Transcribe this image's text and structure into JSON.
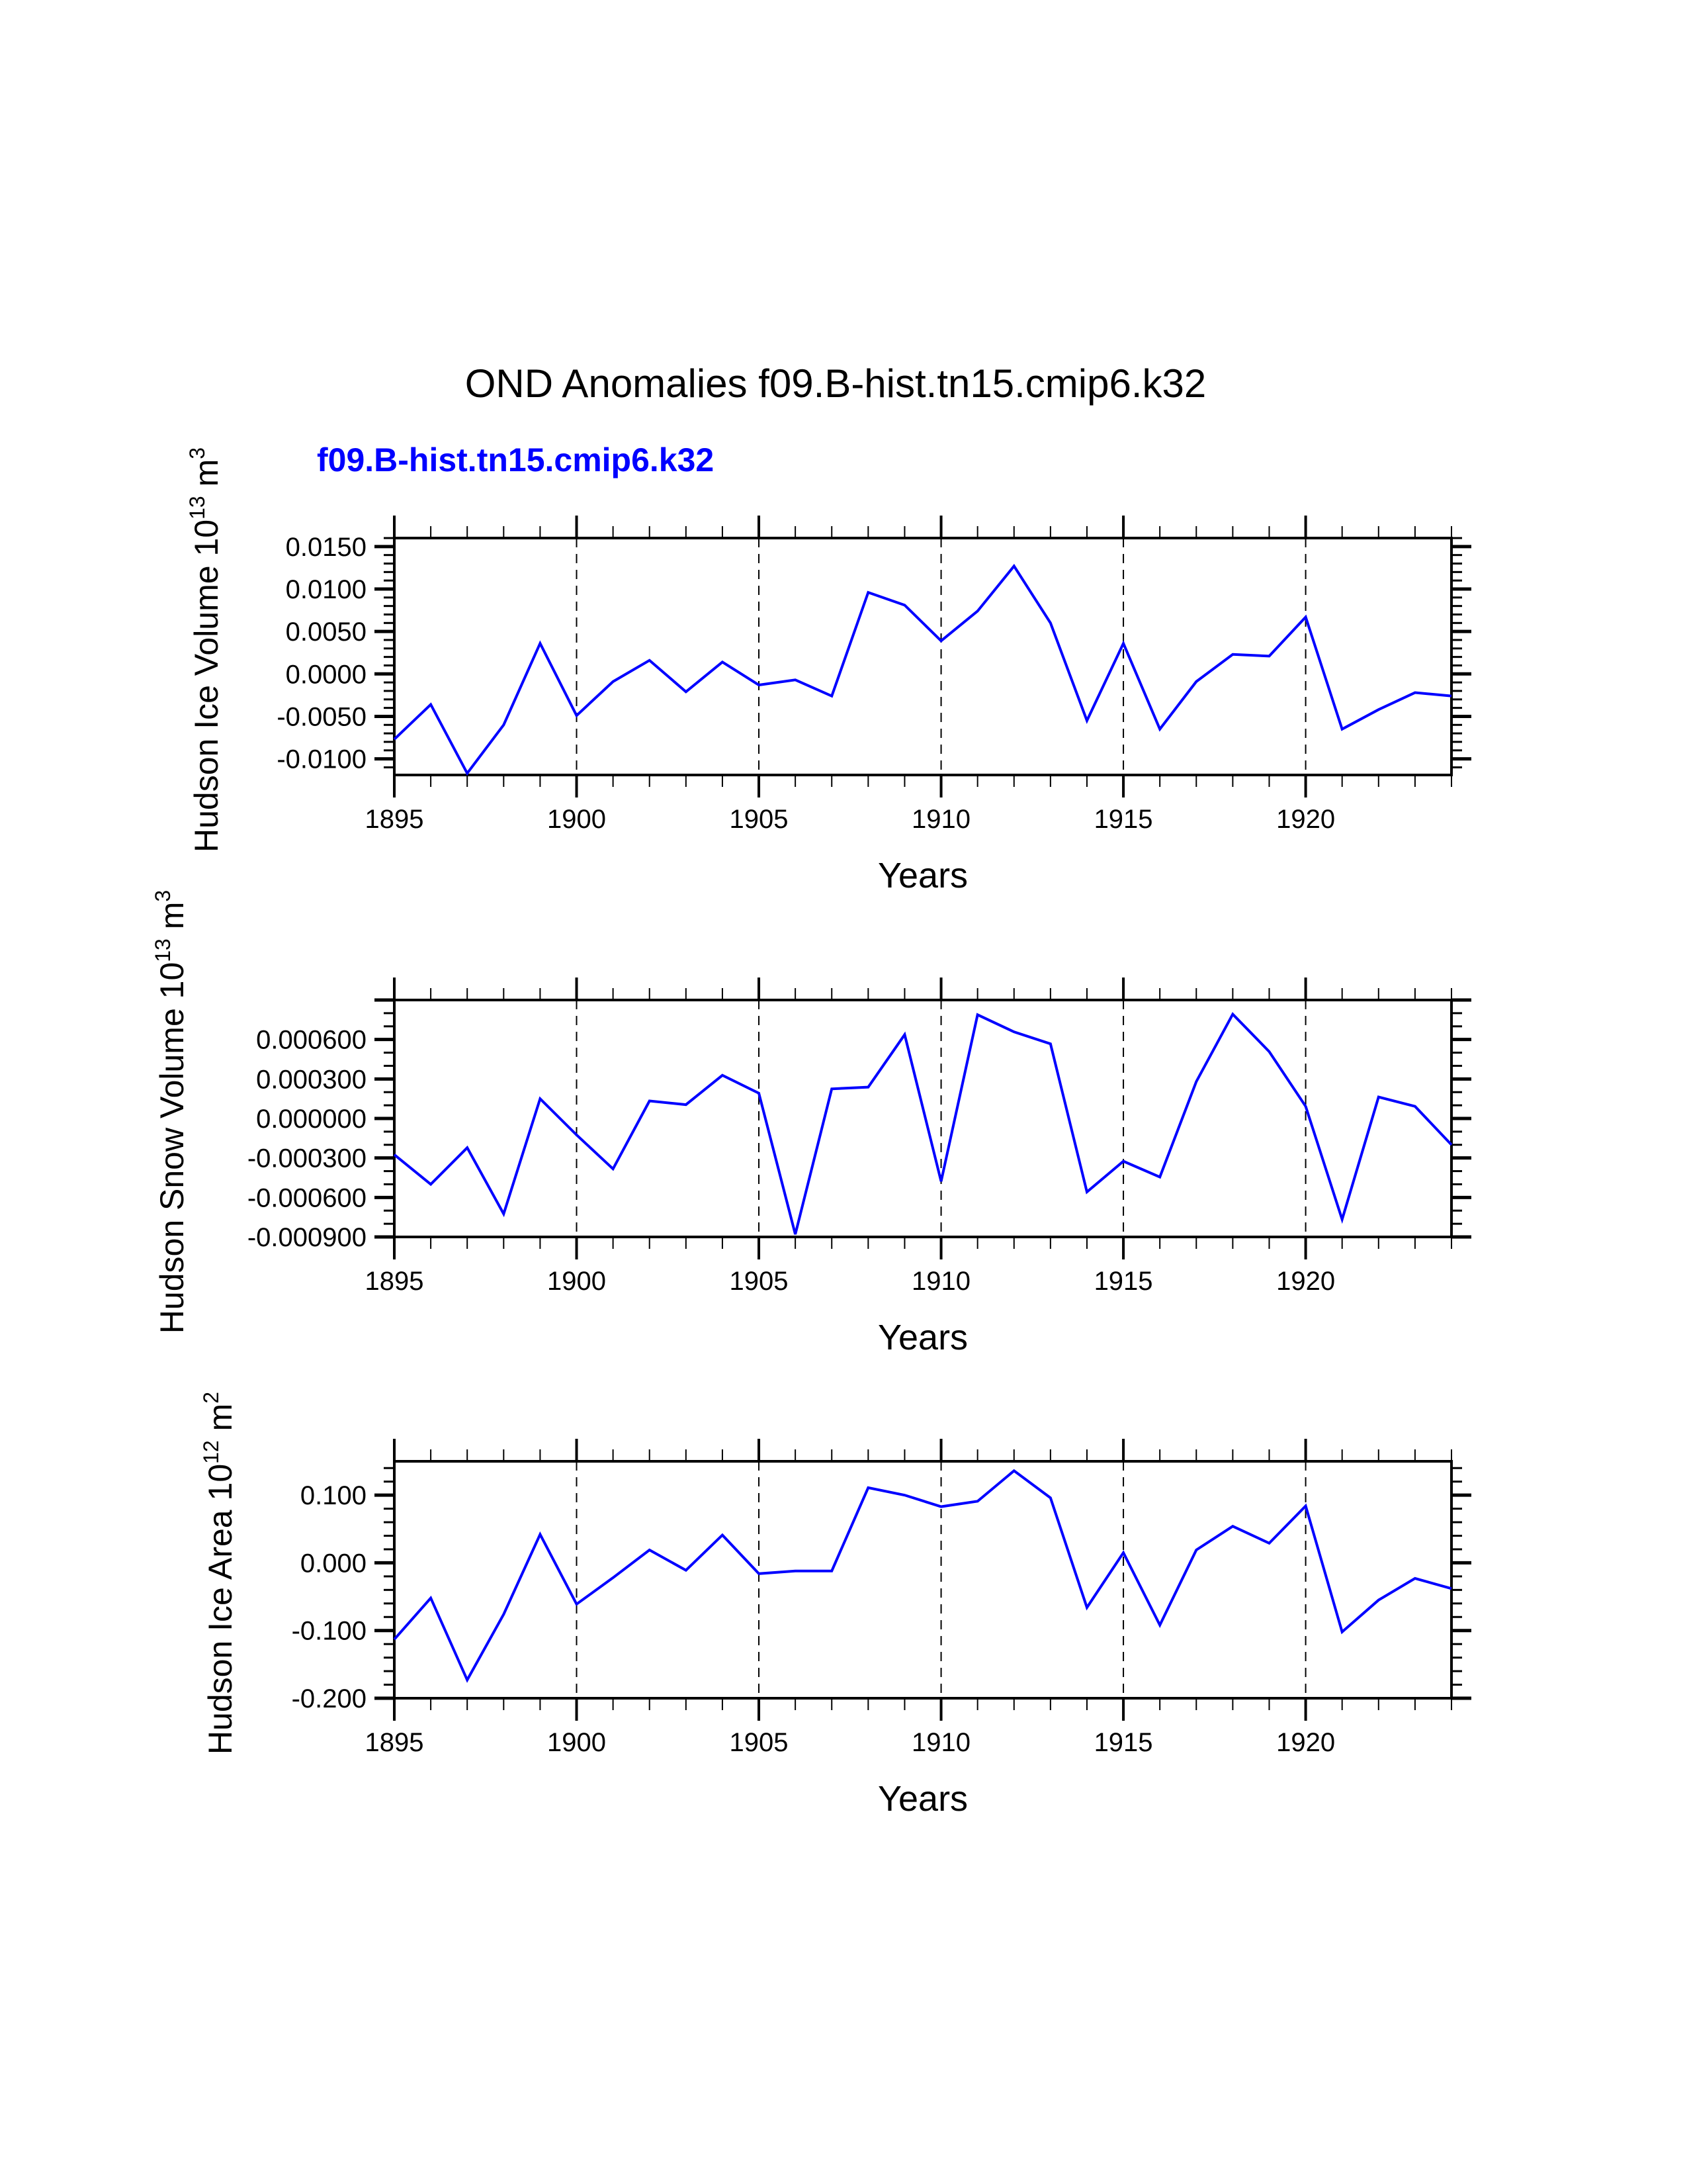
{
  "title": "OND Anomalies f09.B-hist.tn15.cmip6.k32",
  "subtitle": "f09.B-hist.tn15.cmip6.k32",
  "colors": {
    "series": "#0000ff",
    "axis": "#000000",
    "subtitle": "#0000ff"
  },
  "chart_data": [
    {
      "type": "line",
      "ylabel": {
        "text": "Hudson Ice Volume 10",
        "exp": "13",
        "unit": " m",
        "unit_exp": "3"
      },
      "xlabel": "Years",
      "xlim": [
        1895,
        1924
      ],
      "xticks": [
        "1895",
        "1900",
        "1905",
        "1910",
        "1915",
        "1920"
      ],
      "yticks": [
        "0.0150",
        "0.0100",
        "0.0050",
        "0.0000",
        "-0.0050",
        "-0.0100"
      ],
      "ylim": [
        -0.0119,
        0.016
      ],
      "ymajor": 0.005,
      "yminor": 0.001,
      "grid": "dashed vertical at major x ticks",
      "series": [
        {
          "name": "f09.B-hist.tn15.cmip6.k32",
          "x": [
            1895,
            1896,
            1897,
            1898,
            1899,
            1900,
            1901,
            1902,
            1903,
            1904,
            1905,
            1906,
            1907,
            1908,
            1909,
            1910,
            1911,
            1912,
            1913,
            1914,
            1915,
            1916,
            1917,
            1918,
            1919,
            1920,
            1921,
            1922,
            1923,
            1924
          ],
          "values": [
            -0.0077,
            -0.0036,
            -0.0117,
            -0.006,
            0.0036,
            -0.0049,
            -0.0009,
            0.0016,
            -0.0021,
            0.0014,
            -0.0013,
            -0.0007,
            -0.0026,
            0.0096,
            0.0081,
            0.0039,
            0.0074,
            0.0127,
            0.006,
            -0.0055,
            0.0036,
            -0.0065,
            -0.0009,
            0.0023,
            0.0021,
            0.0067,
            -0.0065,
            -0.0042,
            -0.0022,
            -0.0026
          ]
        }
      ]
    },
    {
      "type": "line",
      "ylabel": {
        "text": "Hudson Snow Volume 10",
        "exp": "13",
        "unit": " m",
        "unit_exp": "3"
      },
      "xlabel": "Years",
      "xlim": [
        1895,
        1924
      ],
      "xticks": [
        "1895",
        "1900",
        "1905",
        "1910",
        "1915",
        "1920"
      ],
      "yticks": [
        "0.000600",
        "0.000300",
        "0.000000",
        "-0.000300",
        "-0.000600",
        "-0.000900"
      ],
      "ylim": [
        -0.0009,
        0.0009
      ],
      "ymajor": 0.0003,
      "yminor": 0.0001,
      "grid": "dashed vertical at major x ticks",
      "series": [
        {
          "name": "f09.B-hist.tn15.cmip6.k32",
          "x": [
            1895,
            1896,
            1897,
            1898,
            1899,
            1900,
            1901,
            1902,
            1903,
            1904,
            1905,
            1906,
            1907,
            1908,
            1909,
            1910,
            1911,
            1912,
            1913,
            1914,
            1915,
            1916,
            1917,
            1918,
            1919,
            1920,
            1921,
            1922,
            1923,
            1924
          ],
          "values": [
            -0.000275,
            -0.0005,
            -0.000222,
            -0.000725,
            0.00015,
            -0.000125,
            -0.000383,
            0.000133,
            0.000105,
            0.000328,
            0.000192,
            -0.00088,
            0.000225,
            0.000238,
            0.000637,
            -0.000478,
            0.000788,
            0.000658,
            0.000567,
            -0.000558,
            -0.000325,
            -0.000445,
            0.00028,
            0.000792,
            0.000508,
            9.2e-05,
            -0.000767,
            0.000163,
            9.2e-05,
            -0.0002
          ]
        }
      ]
    },
    {
      "type": "line",
      "ylabel": {
        "text": "Hudson Ice Area 10",
        "exp": "12",
        "unit": " m",
        "unit_exp": "2"
      },
      "xlabel": "Years",
      "xlim": [
        1895,
        1924
      ],
      "xticks": [
        "1895",
        "1900",
        "1905",
        "1910",
        "1915",
        "1920"
      ],
      "yticks": [
        "0.100",
        "0.000",
        "-0.100",
        "-0.200"
      ],
      "ylim": [
        -0.2,
        0.15
      ],
      "ymajor": 0.1,
      "yminor": 0.02,
      "grid": "dashed vertical at major x ticks",
      "series": [
        {
          "name": "f09.B-hist.tn15.cmip6.k32",
          "x": [
            1895,
            1896,
            1897,
            1898,
            1899,
            1900,
            1901,
            1902,
            1903,
            1904,
            1905,
            1906,
            1907,
            1908,
            1909,
            1910,
            1911,
            1912,
            1913,
            1914,
            1915,
            1916,
            1917,
            1918,
            1919,
            1920,
            1921,
            1922,
            1923,
            1924
          ],
          "values": [
            -0.113,
            -0.052,
            -0.173,
            -0.076,
            0.042,
            -0.061,
            -0.022,
            0.019,
            -0.011,
            0.041,
            -0.016,
            -0.012,
            -0.012,
            0.111,
            0.1,
            0.083,
            0.091,
            0.136,
            0.096,
            -0.066,
            0.015,
            -0.092,
            0.019,
            0.054,
            0.029,
            0.084,
            -0.102,
            -0.055,
            -0.023,
            -0.038
          ]
        }
      ]
    }
  ]
}
